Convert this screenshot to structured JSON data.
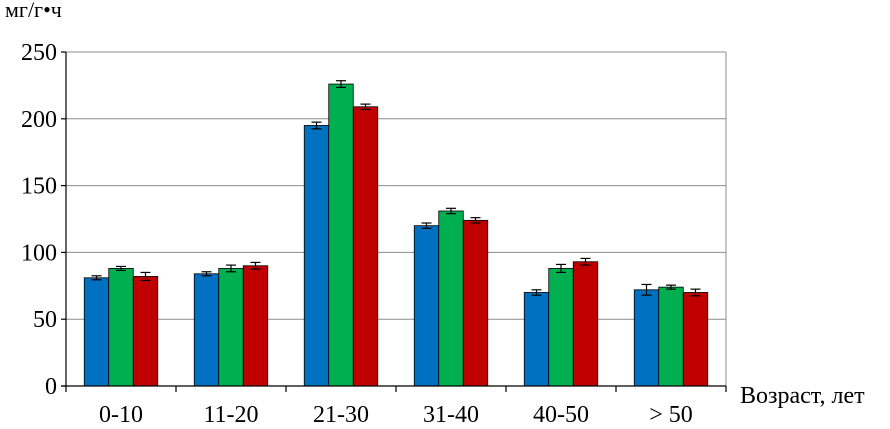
{
  "chart_data": {
    "type": "bar",
    "title": "",
    "ylabel": "мг/г•ч",
    "xlabel": "Возраст, лет",
    "ylim": [
      0,
      250
    ],
    "yticks": [
      0,
      50,
      100,
      150,
      200,
      250
    ],
    "grid": true,
    "legend": "none",
    "error_bars": true,
    "categories": [
      "0-10",
      "11-20",
      "21-30",
      "31-40",
      "40-50",
      "> 50"
    ],
    "series": [
      {
        "color": "#0070C0",
        "values": [
          81,
          84,
          195,
          120,
          70,
          72
        ],
        "errors": [
          1.5,
          1.5,
          2.5,
          2,
          2,
          4
        ]
      },
      {
        "color": "#00B050",
        "values": [
          88,
          88,
          226,
          131,
          88,
          74
        ],
        "errors": [
          1.5,
          2.5,
          2.5,
          2,
          3,
          1.5
        ]
      },
      {
        "color": "#C00000",
        "values": [
          82,
          90,
          209,
          124,
          93,
          70
        ],
        "errors": [
          3,
          2.5,
          2,
          2,
          2.5,
          2.5
        ]
      }
    ]
  }
}
